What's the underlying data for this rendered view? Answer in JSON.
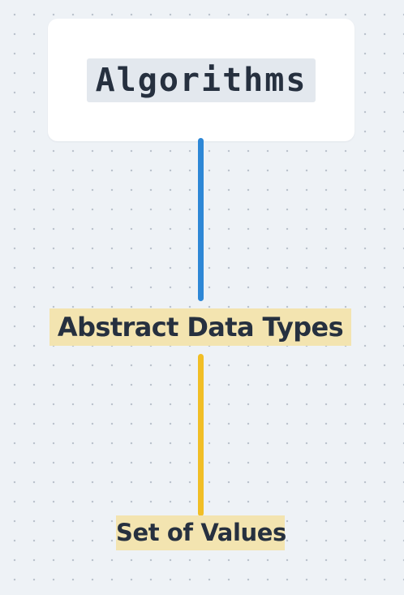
{
  "diagram": {
    "root": {
      "label": "Algorithms"
    },
    "nodes": [
      {
        "id": "adt",
        "label": "Abstract Data Types"
      },
      {
        "id": "values",
        "label": "Set of Values"
      }
    ],
    "edges": [
      {
        "from": "root",
        "to": "adt",
        "color": "#2d87d6"
      },
      {
        "from": "adt",
        "to": "values",
        "color": "#f1be25"
      }
    ],
    "colors": {
      "background": "#eef2f6",
      "card": "#ffffff",
      "code_highlight": "#e3e8ee",
      "topic_highlight": "#f3e4b0",
      "text": "#26303f"
    }
  }
}
